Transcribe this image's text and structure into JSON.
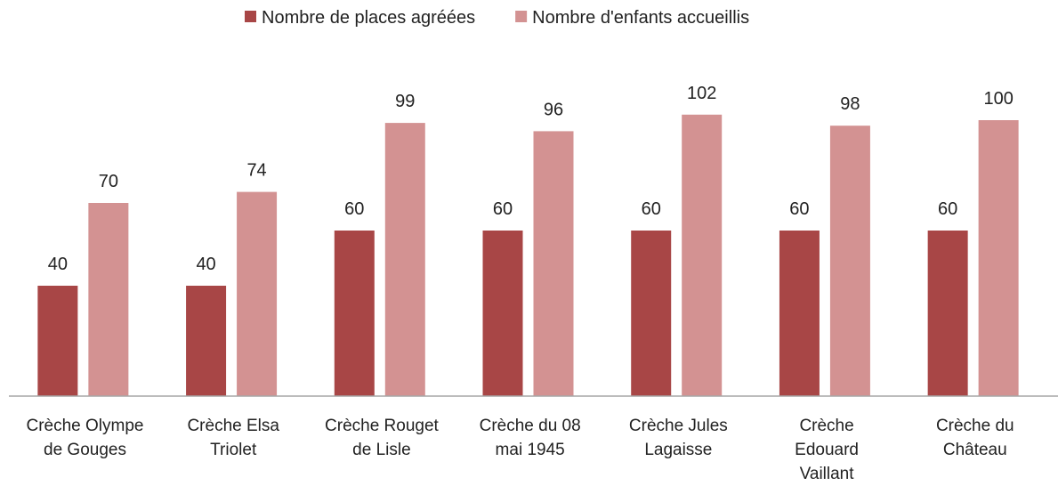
{
  "chart_data": {
    "type": "bar",
    "categories": [
      "Crèche Olympe\nde Gouges",
      "Crèche Elsa\nTriolet",
      "Crèche Rouget\nde Lisle",
      "Crèche du 08\nmai 1945",
      "Crèche Jules\nLagaisse",
      "Crèche\nEdouard\nVaillant",
      "Crèche du\nChâteau"
    ],
    "series": [
      {
        "name": "Nombre de places agréées",
        "color": "#a84646",
        "values": [
          40,
          40,
          60,
          60,
          60,
          60,
          60
        ]
      },
      {
        "name": "Nombre d'enfants accueillis",
        "color": "#d39292",
        "values": [
          70,
          74,
          99,
          96,
          102,
          98,
          100
        ]
      }
    ],
    "ylim": [
      0,
      120
    ],
    "legend": "top"
  }
}
